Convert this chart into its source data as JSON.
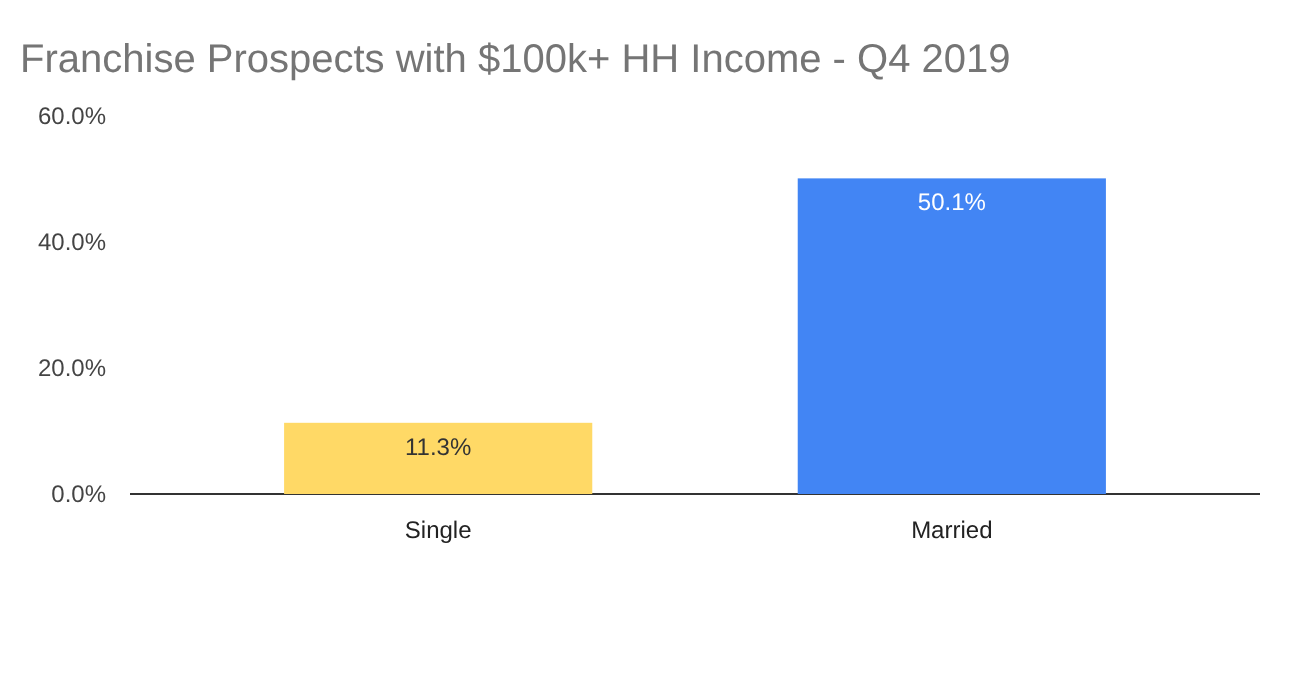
{
  "chart_data": {
    "type": "bar",
    "title": "Franchise Prospects with $100k+ HH Income - Q4 2019",
    "categories": [
      "Single",
      "Married"
    ],
    "values": [
      11.3,
      50.1
    ],
    "colors": [
      "#ffd966",
      "#4285f4"
    ],
    "value_labels": [
      "11.3%",
      "50.1%"
    ],
    "ylim": [
      0,
      60
    ],
    "yticks": [
      {
        "value": 0,
        "label": "0.0%"
      },
      {
        "value": 20,
        "label": "20.0%"
      },
      {
        "value": 40,
        "label": "40.0%"
      },
      {
        "value": 60,
        "label": "60.0%"
      }
    ],
    "grid": false
  }
}
